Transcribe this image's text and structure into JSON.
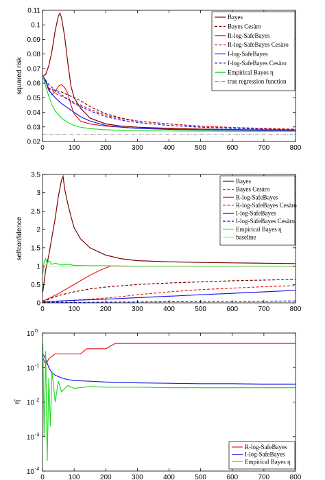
{
  "chart_data": [
    {
      "type": "line",
      "ylabel": "squared risk",
      "xlim": [
        0,
        800
      ],
      "ylim": [
        0.02,
        0.11
      ],
      "x_ticks": [
        "0",
        "100",
        "200",
        "300",
        "400",
        "500",
        "600",
        "700",
        "800"
      ],
      "y_ticks": [
        "0.02",
        "0.03",
        "0.04",
        "0.05",
        "0.06",
        "0.07",
        "0.08",
        "0.09",
        "0.1",
        "0.11"
      ],
      "legend_position": "top-right",
      "grid": false,
      "series": [
        {
          "name": "Bayes",
          "color": "#7a0000",
          "dash": "solid",
          "x": [
            1,
            10,
            20,
            30,
            40,
            50,
            55,
            60,
            70,
            80,
            90,
            100,
            120,
            150,
            200,
            250,
            300,
            400,
            500,
            600,
            700,
            800
          ],
          "y": [
            0.065,
            0.066,
            0.072,
            0.082,
            0.096,
            0.106,
            0.108,
            0.105,
            0.092,
            0.074,
            0.058,
            0.05,
            0.043,
            0.036,
            0.032,
            0.0305,
            0.0298,
            0.029,
            0.0285,
            0.0282,
            0.028,
            0.0279
          ]
        },
        {
          "name": "Bayes Cesàro",
          "color": "#7a0000",
          "dash": "dashed",
          "x": [
            1,
            10,
            20,
            40,
            60,
            80,
            100,
            120,
            150,
            200,
            250,
            300,
            400,
            500,
            600,
            700,
            800
          ],
          "y": [
            0.065,
            0.061,
            0.056,
            0.055,
            0.054,
            0.052,
            0.05,
            0.048,
            0.044,
            0.039,
            0.036,
            0.034,
            0.032,
            0.0305,
            0.0295,
            0.0288,
            0.0283
          ]
        },
        {
          "name": "R-log-SafeBayes",
          "color": "#ee1c1c",
          "dash": "solid",
          "x": [
            1,
            10,
            20,
            30,
            40,
            50,
            60,
            70,
            80,
            90,
            100,
            120,
            150,
            200,
            250,
            300,
            400,
            500,
            600,
            700,
            800
          ],
          "y": [
            0.065,
            0.062,
            0.056,
            0.052,
            0.054,
            0.058,
            0.059,
            0.057,
            0.053,
            0.045,
            0.039,
            0.034,
            0.032,
            0.0305,
            0.0298,
            0.029,
            0.0285,
            0.0282,
            0.028,
            0.0279,
            0.0278
          ]
        },
        {
          "name": "R-log-SafeBayes Cesàro",
          "color": "#ee1c1c",
          "dash": "dashed",
          "x": [
            1,
            10,
            20,
            40,
            60,
            80,
            100,
            120,
            150,
            200,
            250,
            300,
            400,
            500,
            600,
            700,
            800
          ],
          "y": [
            0.065,
            0.061,
            0.057,
            0.053,
            0.051,
            0.049,
            0.047,
            0.045,
            0.042,
            0.038,
            0.0355,
            0.034,
            0.032,
            0.0305,
            0.0296,
            0.029,
            0.0285
          ]
        },
        {
          "name": "I-log-SafeBayes",
          "color": "#1c1cee",
          "dash": "solid",
          "x": [
            1,
            10,
            20,
            40,
            60,
            80,
            100,
            120,
            150,
            200,
            250,
            300,
            400,
            500,
            600,
            700,
            800
          ],
          "y": [
            0.065,
            0.061,
            0.055,
            0.05,
            0.046,
            0.043,
            0.04,
            0.037,
            0.034,
            0.031,
            0.0298,
            0.029,
            0.0283,
            0.028,
            0.0278,
            0.0276,
            0.0275
          ]
        },
        {
          "name": "I-log-SafeBayes Cesàro",
          "color": "#1c1cee",
          "dash": "dashed",
          "x": [
            1,
            10,
            20,
            40,
            60,
            80,
            100,
            120,
            150,
            200,
            250,
            300,
            400,
            500,
            600,
            700,
            800
          ],
          "y": [
            0.065,
            0.062,
            0.059,
            0.055,
            0.052,
            0.049,
            0.046,
            0.044,
            0.041,
            0.037,
            0.0345,
            0.033,
            0.031,
            0.0298,
            0.029,
            0.0285,
            0.028
          ]
        },
        {
          "name": "Empirical Bayes η",
          "color": "#22dd22",
          "dash": "solid",
          "x": [
            1,
            10,
            20,
            30,
            40,
            60,
            80,
            100,
            120,
            150,
            200,
            250,
            300,
            400,
            500,
            600,
            700,
            800
          ],
          "y": [
            0.065,
            0.058,
            0.051,
            0.045,
            0.041,
            0.036,
            0.033,
            0.031,
            0.0298,
            0.0288,
            0.028,
            0.0276,
            0.0274,
            0.0272,
            0.0271,
            0.027,
            0.027,
            0.027
          ]
        },
        {
          "name": "true regression function",
          "color": "#999999",
          "dash": "dashdot",
          "x": [
            0,
            800
          ],
          "y": [
            0.025,
            0.025
          ]
        }
      ]
    },
    {
      "type": "line",
      "ylabel": "selfconfidence",
      "xlim": [
        0,
        800
      ],
      "ylim": [
        0,
        3.5
      ],
      "x_ticks": [
        "0",
        "100",
        "200",
        "300",
        "400",
        "500",
        "600",
        "700",
        "800"
      ],
      "y_ticks": [
        "0",
        "0.5",
        "1",
        "1.5",
        "2",
        "2.5",
        "3",
        "3.5"
      ],
      "legend_position": "top-right",
      "grid": false,
      "series": [
        {
          "name": "Bayes",
          "color": "#7a0000",
          "dash": "solid",
          "x": [
            1,
            10,
            20,
            30,
            40,
            50,
            60,
            65,
            70,
            80,
            90,
            100,
            120,
            150,
            200,
            250,
            300,
            400,
            500,
            600,
            700,
            800
          ],
          "y": [
            0.3,
            0.9,
            1.3,
            1.8,
            2.3,
            2.9,
            3.35,
            3.45,
            3.1,
            2.7,
            2.35,
            2.05,
            1.75,
            1.5,
            1.3,
            1.2,
            1.15,
            1.12,
            1.1,
            1.09,
            1.08,
            1.07
          ]
        },
        {
          "name": "Bayes Cesàro",
          "color": "#7a0000",
          "dash": "dashed",
          "x": [
            1,
            20,
            50,
            100,
            150,
            200,
            300,
            400,
            500,
            600,
            700,
            800
          ],
          "y": [
            0.02,
            0.1,
            0.2,
            0.3,
            0.38,
            0.43,
            0.5,
            0.54,
            0.57,
            0.6,
            0.62,
            0.64
          ]
        },
        {
          "name": "R-log-SafeBayes",
          "color": "#ee1c1c",
          "dash": "solid",
          "x": [
            1,
            20,
            50,
            80,
            100,
            120,
            150,
            180,
            200,
            215,
            230,
            300,
            400,
            500,
            600,
            700,
            800
          ],
          "y": [
            0.05,
            0.12,
            0.25,
            0.4,
            0.5,
            0.6,
            0.75,
            0.88,
            0.95,
            1.0,
            1.0,
            1.0,
            1.0,
            1.0,
            1.0,
            1.0,
            1.0
          ]
        },
        {
          "name": "R-log-SafeBayes Cesàro",
          "color": "#ee1c1c",
          "dash": "dashed",
          "x": [
            1,
            50,
            100,
            150,
            200,
            250,
            300,
            400,
            500,
            600,
            700,
            800
          ],
          "y": [
            0.01,
            0.03,
            0.07,
            0.1,
            0.13,
            0.17,
            0.22,
            0.3,
            0.36,
            0.4,
            0.44,
            0.47
          ]
        },
        {
          "name": "I-log-SafeBayes",
          "color": "#1c1cee",
          "dash": "solid",
          "x": [
            1,
            50,
            100,
            200,
            300,
            400,
            500,
            600,
            700,
            800
          ],
          "y": [
            0.02,
            0.05,
            0.07,
            0.1,
            0.14,
            0.18,
            0.22,
            0.26,
            0.3,
            0.34
          ]
        },
        {
          "name": "I-log-SafeBayes Cesàro",
          "color": "#1c1cee",
          "dash": "dashed",
          "x": [
            1,
            100,
            200,
            300,
            400,
            500,
            600,
            700,
            800
          ],
          "y": [
            0.01,
            0.01,
            0.02,
            0.025,
            0.03,
            0.035,
            0.04,
            0.045,
            0.05
          ]
        },
        {
          "name": "Empirical Bayes η",
          "color": "#22dd22",
          "dash": "solid",
          "x": [
            1,
            5,
            10,
            15,
            20,
            30,
            40,
            60,
            80,
            100,
            150,
            200,
            300,
            400,
            500,
            600,
            700,
            800
          ],
          "y": [
            0.8,
            1.1,
            1.2,
            1.08,
            1.15,
            1.05,
            1.08,
            1.03,
            1.05,
            1.02,
            1.01,
            1.01,
            1.0,
            1.0,
            1.0,
            1.0,
            1.0,
            1.0
          ]
        },
        {
          "name": "baseline",
          "color": "#99ee99",
          "dash": "solid",
          "x": [
            0,
            800
          ],
          "y": [
            1.0,
            1.0
          ]
        }
      ]
    },
    {
      "type": "line",
      "ylabel": "η̂",
      "yscale": "log",
      "xlim": [
        0,
        800
      ],
      "ylim": [
        0.0001,
        1
      ],
      "x_ticks": [
        "0",
        "100",
        "200",
        "300",
        "400",
        "500",
        "600",
        "700",
        "800"
      ],
      "y_ticks": [
        "10^-4",
        "10^-3",
        "10^-2",
        "10^-1",
        "10^0"
      ],
      "legend_position": "bottom-right",
      "grid": false,
      "series": [
        {
          "name": "R-log-SafeBayes",
          "color": "#ee1c1c",
          "dash": "solid",
          "x": [
            1,
            10,
            20,
            40,
            60,
            80,
            100,
            120,
            140,
            160,
            200,
            230,
            300,
            400,
            500,
            600,
            700,
            800
          ],
          "y": [
            0.2,
            0.12,
            0.18,
            0.25,
            0.25,
            0.25,
            0.25,
            0.25,
            0.35,
            0.35,
            0.35,
            0.5,
            0.5,
            0.5,
            0.5,
            0.5,
            0.5,
            0.5
          ]
        },
        {
          "name": "I-log-SafeBayes",
          "color": "#1c1cee",
          "dash": "solid",
          "x": [
            1,
            10,
            20,
            30,
            40,
            60,
            80,
            100,
            150,
            200,
            300,
            400,
            500,
            600,
            700,
            800
          ],
          "y": [
            0.25,
            0.18,
            0.1,
            0.07,
            0.06,
            0.05,
            0.045,
            0.042,
            0.04,
            0.038,
            0.036,
            0.035,
            0.034,
            0.034,
            0.033,
            0.033
          ]
        },
        {
          "name": "Empirical Bayes η",
          "color": "#22dd22",
          "dash": "solid",
          "x": [
            1,
            5,
            10,
            15,
            20,
            25,
            30,
            40,
            50,
            60,
            80,
            100,
            150,
            200,
            300,
            400,
            500,
            600,
            700,
            800
          ],
          "y": [
            0.5,
            0.001,
            0.3,
            0.0002,
            0.05,
            0.002,
            0.08,
            0.01,
            0.04,
            0.02,
            0.03,
            0.025,
            0.028,
            0.027,
            0.027,
            0.026,
            0.026,
            0.026,
            0.026,
            0.026
          ]
        }
      ]
    }
  ]
}
